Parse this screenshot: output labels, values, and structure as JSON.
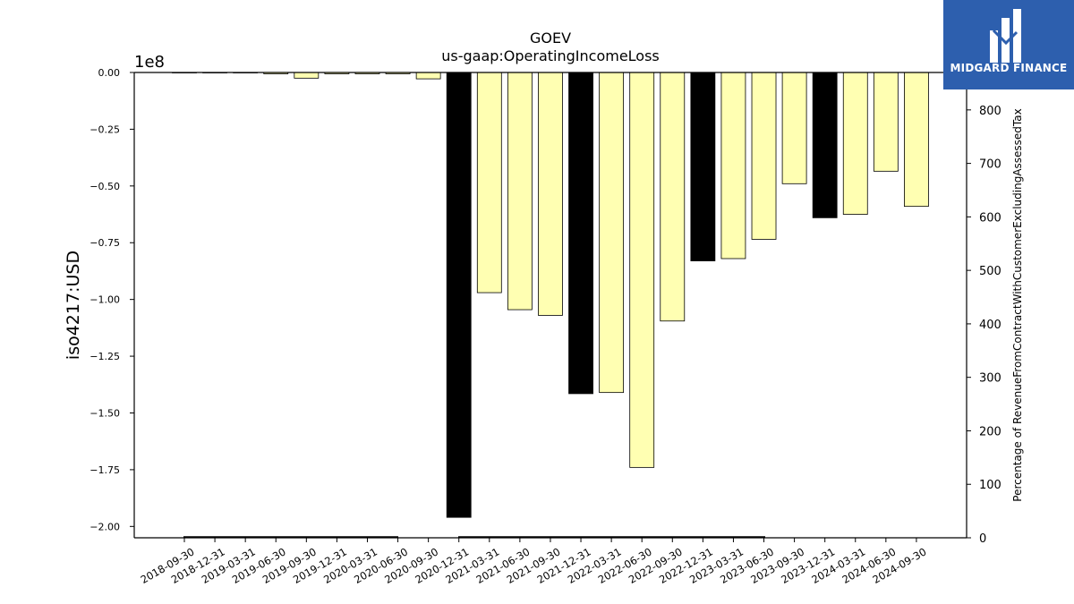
{
  "chart_data": {
    "type": "bar",
    "title": "GOEV",
    "subtitle": "us-gaap:OperatingIncomeLoss",
    "ylabel": "iso4217:USD",
    "y_offset_label": "1e8",
    "y2label": "Percentage of RevenueFromContractWithCustomerExcludingAssessedTax",
    "ylim": [
      -205000000,
      0
    ],
    "y2lim": [
      0,
      870
    ],
    "y_ticks": [
      "0.00",
      "−0.25",
      "−0.50",
      "−0.75",
      "−1.00",
      "−1.25",
      "−1.50",
      "−1.75",
      "−2.00"
    ],
    "y_tick_values": [
      0,
      -25000000,
      -50000000,
      -75000000,
      -100000000,
      -125000000,
      -150000000,
      -175000000,
      -200000000
    ],
    "y2_ticks": [
      "0",
      "100",
      "200",
      "300",
      "400",
      "500",
      "600",
      "700",
      "800"
    ],
    "y2_tick_values": [
      0,
      100,
      200,
      300,
      400,
      500,
      600,
      700,
      800
    ],
    "categories": [
      "2018-09-30",
      "2018-12-31",
      "2019-03-31",
      "2019-06-30",
      "2019-09-30",
      "2019-12-31",
      "2020-03-31",
      "2020-06-30",
      "2020-09-30",
      "2020-12-31",
      "2021-03-31",
      "2021-06-30",
      "2021-09-30",
      "2021-12-31",
      "2022-03-31",
      "2022-06-30",
      "2022-09-30",
      "2022-12-31",
      "2023-03-31",
      "2023-06-30",
      "2023-09-30",
      "2023-12-31",
      "2024-03-31",
      "2024-06-30",
      "2024-09-30"
    ],
    "values": [
      0,
      0,
      0,
      -600000,
      -2500000,
      -600000,
      -600000,
      -600000,
      -2800000,
      -196000000,
      -97000000,
      -104500000,
      -107000000,
      -141500000,
      -141000000,
      -174000000,
      -109500000,
      -83000000,
      -82000000,
      -73500000,
      -49000000,
      -64000000,
      -62500000,
      -43500000,
      -59000000
    ],
    "highlight": [
      false,
      false,
      false,
      false,
      false,
      false,
      false,
      false,
      false,
      true,
      false,
      false,
      false,
      true,
      false,
      false,
      false,
      true,
      false,
      false,
      false,
      true,
      false,
      false,
      false
    ],
    "colors": {
      "bar": "#ffffb2",
      "highlight": "#000000",
      "edge": "#000000"
    }
  },
  "logo": {
    "text": "MIDGARD FINANCE",
    "background": "#2d5fae"
  }
}
